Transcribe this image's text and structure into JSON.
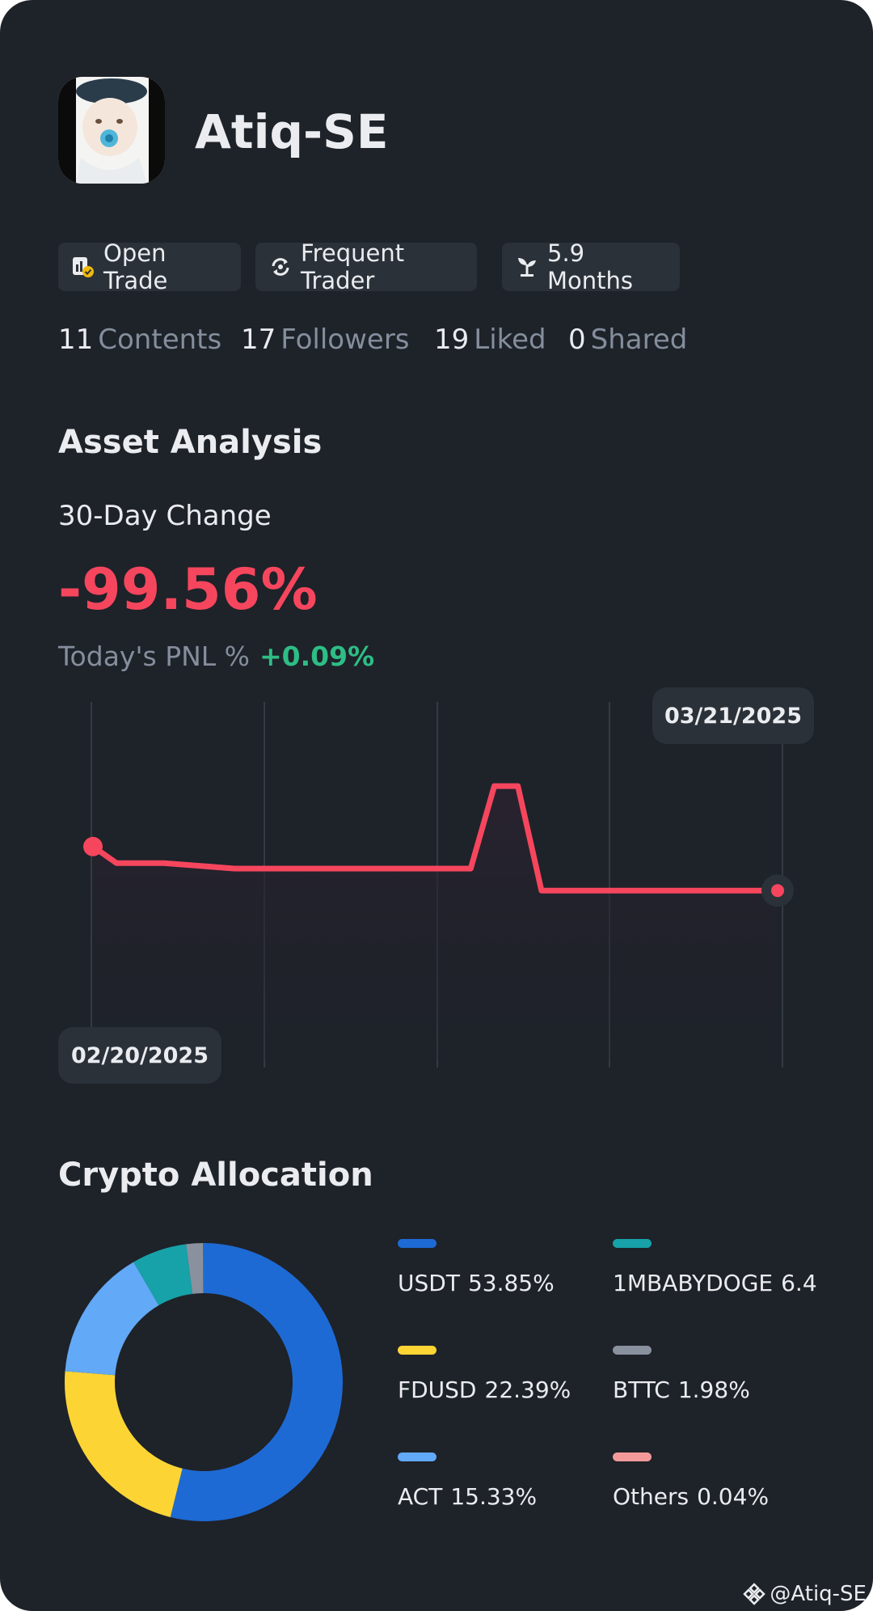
{
  "profile": {
    "username": "Atiq-SE"
  },
  "tags": [
    {
      "label": "Open Trade",
      "icon": "open-trade-icon"
    },
    {
      "label": "Frequent Trader",
      "icon": "repeat-icon"
    },
    {
      "label": "5.9 Months",
      "icon": "sprout-icon"
    }
  ],
  "stats": [
    {
      "value": "11",
      "label": "Contents"
    },
    {
      "value": "17",
      "label": "Followers"
    },
    {
      "value": "19",
      "label": "Liked"
    },
    {
      "value": "0",
      "label": "Shared"
    }
  ],
  "asset": {
    "title": "Asset Analysis",
    "change_label": "30-Day Change",
    "change_value": "-99.56%",
    "pnl_label": "Today's PNL %",
    "pnl_value": "+0.09%"
  },
  "chart_data": {
    "type": "line",
    "x": [
      "02/20/2025",
      "02/21/2025",
      "02/23/2025",
      "02/26/2025",
      "03/01/2025",
      "03/06/2025",
      "03/08/2025",
      "03/09/2025",
      "03/10/2025",
      "03/11/2025",
      "03/12/2025",
      "03/21/2025"
    ],
    "values": [
      0.78,
      0.72,
      0.72,
      0.7,
      0.7,
      0.7,
      0.7,
      1.0,
      1.0,
      0.62,
      0.62,
      0.62
    ],
    "start_label": "02/20/2025",
    "end_label": "03/21/2025",
    "colors": {
      "line": "#f6465d"
    }
  },
  "allocation": {
    "title": "Crypto Allocation",
    "items": [
      {
        "name": "USDT",
        "pct": "53.85%",
        "value": 53.85,
        "color": "#1e6ad4"
      },
      {
        "name": "1MBABYDOGE",
        "pct": "6.4",
        "value": 6.4,
        "color": "#16a2a8"
      },
      {
        "name": "FDUSD",
        "pct": "22.39%",
        "value": 22.39,
        "color": "#fcd535"
      },
      {
        "name": "BTTC",
        "pct": "1.98%",
        "value": 1.98,
        "color": "#8a919e"
      },
      {
        "name": "ACT",
        "pct": "15.33%",
        "value": 15.33,
        "color": "#62a9f7"
      },
      {
        "name": "Others",
        "pct": "0.04%",
        "value": 0.04,
        "color": "#f29a9a"
      }
    ]
  },
  "watermark": "@Atiq-SE"
}
